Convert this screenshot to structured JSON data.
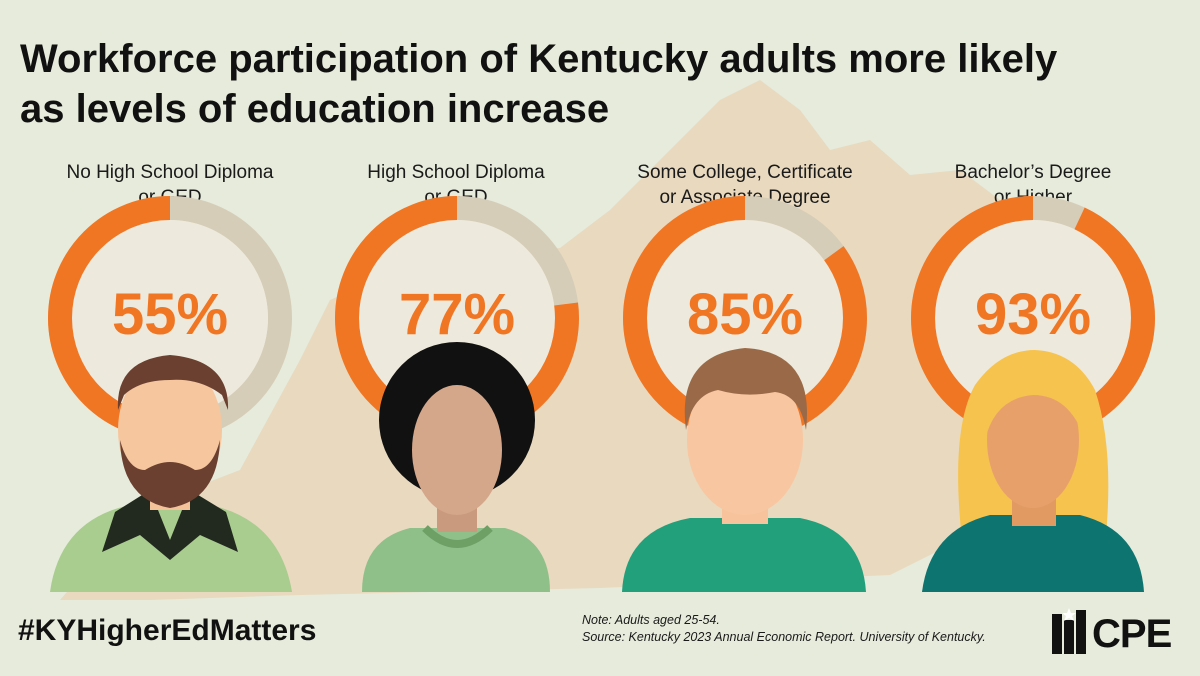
{
  "title": {
    "line1": "Workforce participation of Kentucky adults more likely",
    "line2": "as levels of education increase"
  },
  "colors": {
    "background": "#e6ebdc",
    "map": "#e8d9bf",
    "filled": "#f07623",
    "remaining": "#d6cdb8",
    "percent_text": "#f07623"
  },
  "chart_data": {
    "type": "pie",
    "categories": [
      "No High School Diploma or GED",
      "High School Diploma or GED",
      "Some College, Certificate or Associate Degree",
      "Bachelor’s Degree or Higher"
    ],
    "values": [
      55,
      77,
      85,
      93
    ],
    "unit": "%",
    "title": "Workforce participation of Kentucky adults more likely as levels of education increase"
  },
  "panels": [
    {
      "label_line1": "No High School Diploma",
      "label_line2": "or GED",
      "percent_label": "55%",
      "person": "bearded-man"
    },
    {
      "label_line1": "High School Diploma",
      "label_line2": "or GED",
      "percent_label": "77%",
      "person": "curly-haired-person"
    },
    {
      "label_line1": "Some College, Certificate",
      "label_line2": "or Associate Degree",
      "percent_label": "85%",
      "person": "short-haired-man"
    },
    {
      "label_line1": "Bachelor’s Degree",
      "label_line2": "or Higher",
      "percent_label": "93%",
      "person": "blonde-woman"
    }
  ],
  "footer": {
    "hashtag": "#KYHigherEdMatters",
    "note": "Note: Adults aged 25-54.",
    "source": "Source: Kentucky 2023 Annual Economic Report. University of Kentucky.",
    "logo_text": "CPE"
  }
}
